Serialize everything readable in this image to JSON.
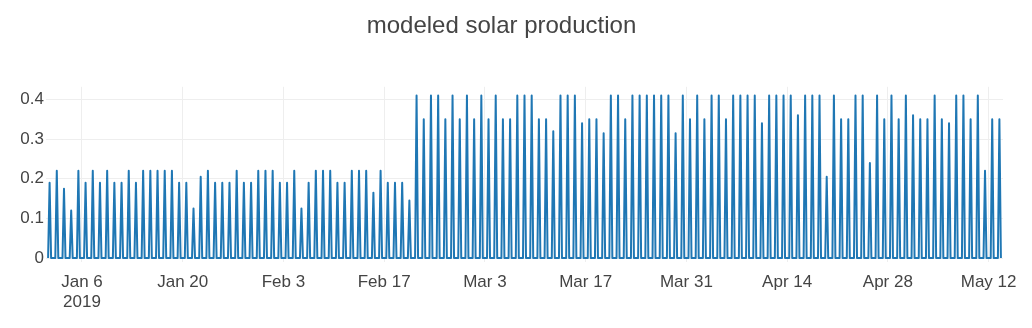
{
  "chart_data": {
    "type": "line",
    "title": "modeled solar production",
    "xlim": [
      "2019-01-01",
      "2019-05-14"
    ],
    "xticks": [
      {
        "value": "2019-01-06",
        "label": "Jan 6\n2019"
      },
      {
        "value": "2019-01-20",
        "label": "Jan 20"
      },
      {
        "value": "2019-02-03",
        "label": "Feb 3"
      },
      {
        "value": "2019-02-17",
        "label": "Feb 17"
      },
      {
        "value": "2019-03-03",
        "label": "Mar 3"
      },
      {
        "value": "2019-03-17",
        "label": "Mar 17"
      },
      {
        "value": "2019-03-31",
        "label": "Mar 31"
      },
      {
        "value": "2019-04-14",
        "label": "Apr 14"
      },
      {
        "value": "2019-04-28",
        "label": "Apr 28"
      },
      {
        "value": "2019-05-12",
        "label": "May 12"
      }
    ],
    "ylim": [
      -0.01,
      0.432
    ],
    "yticks": [
      0,
      0.1,
      0.2,
      0.3,
      0.4
    ],
    "grid": true,
    "legend": false,
    "marker": "none",
    "line_style": "solid",
    "series": [
      {
        "color": "#1f77b4",
        "x": [
          "2019-01-01T07:00",
          "2019-01-01T12:00",
          "2019-01-01T17:00",
          "2019-01-02T07:00",
          "2019-01-02T12:00",
          "2019-01-02T17:00",
          "2019-01-03T07:00",
          "2019-01-03T12:00",
          "2019-01-03T17:00",
          "2019-01-04T07:00",
          "2019-01-04T12:00",
          "2019-01-04T17:00",
          "2019-01-05T07:00",
          "2019-01-05T12:00",
          "2019-01-05T17:00",
          "2019-01-06T07:00",
          "2019-01-06T12:00",
          "2019-01-06T17:00",
          "2019-01-07T07:00",
          "2019-01-07T12:00",
          "2019-01-07T17:00",
          "2019-01-08T07:00",
          "2019-01-08T12:00",
          "2019-01-08T17:00",
          "2019-01-09T07:00",
          "2019-01-09T12:00",
          "2019-01-09T17:00",
          "2019-01-10T07:00",
          "2019-01-10T12:00",
          "2019-01-10T17:00",
          "2019-01-11T07:00",
          "2019-01-11T12:00",
          "2019-01-11T17:00",
          "2019-01-12T07:00",
          "2019-01-12T12:00",
          "2019-01-12T17:00",
          "2019-01-13T07:00",
          "2019-01-13T12:00",
          "2019-01-13T17:00",
          "2019-01-14T07:00",
          "2019-01-14T12:00",
          "2019-01-14T17:00",
          "2019-01-15T07:00",
          "2019-01-15T12:00",
          "2019-01-15T17:00",
          "2019-01-16T07:00",
          "2019-01-16T12:00",
          "2019-01-16T17:00",
          "2019-01-17T07:00",
          "2019-01-17T12:00",
          "2019-01-17T17:00",
          "2019-01-18T07:00",
          "2019-01-18T12:00",
          "2019-01-18T17:00",
          "2019-01-19T07:00",
          "2019-01-19T12:00",
          "2019-01-19T17:00",
          "2019-01-20T07:00",
          "2019-01-20T12:00",
          "2019-01-20T17:00",
          "2019-01-21T07:00",
          "2019-01-21T12:00",
          "2019-01-21T17:00",
          "2019-01-22T07:00",
          "2019-01-22T12:00",
          "2019-01-22T17:00",
          "2019-01-23T07:00",
          "2019-01-23T12:00",
          "2019-01-23T17:00",
          "2019-01-24T07:00",
          "2019-01-24T12:00",
          "2019-01-24T17:00",
          "2019-01-25T07:00",
          "2019-01-25T12:00",
          "2019-01-25T17:00",
          "2019-01-26T07:00",
          "2019-01-26T12:00",
          "2019-01-26T17:00",
          "2019-01-27T07:00",
          "2019-01-27T12:00",
          "2019-01-27T17:00",
          "2019-01-28T07:00",
          "2019-01-28T12:00",
          "2019-01-28T17:00",
          "2019-01-29T07:00",
          "2019-01-29T12:00",
          "2019-01-29T17:00",
          "2019-01-30T07:00",
          "2019-01-30T12:00",
          "2019-01-30T17:00",
          "2019-01-31T07:00",
          "2019-01-31T12:00",
          "2019-01-31T17:00",
          "2019-02-01T07:00",
          "2019-02-01T12:00",
          "2019-02-01T17:00",
          "2019-02-02T07:00",
          "2019-02-02T12:00",
          "2019-02-02T17:00",
          "2019-02-03T07:00",
          "2019-02-03T12:00",
          "2019-02-03T17:00",
          "2019-02-04T07:00",
          "2019-02-04T12:00",
          "2019-02-04T17:00",
          "2019-02-05T07:00",
          "2019-02-05T12:00",
          "2019-02-05T17:00",
          "2019-02-06T07:00",
          "2019-02-06T12:00",
          "2019-02-06T17:00",
          "2019-02-07T07:00",
          "2019-02-07T12:00",
          "2019-02-07T17:00",
          "2019-02-08T07:00",
          "2019-02-08T12:00",
          "2019-02-08T17:00",
          "2019-02-09T07:00",
          "2019-02-09T12:00",
          "2019-02-09T17:00",
          "2019-02-10T07:00",
          "2019-02-10T12:00",
          "2019-02-10T17:00",
          "2019-02-11T07:00",
          "2019-02-11T12:00",
          "2019-02-11T17:00",
          "2019-02-12T07:00",
          "2019-02-12T12:00",
          "2019-02-12T17:00",
          "2019-02-13T07:00",
          "2019-02-13T12:00",
          "2019-02-13T17:00",
          "2019-02-14T07:00",
          "2019-02-14T12:00",
          "2019-02-14T17:00",
          "2019-02-15T07:00",
          "2019-02-15T12:00",
          "2019-02-15T17:00",
          "2019-02-16T07:00",
          "2019-02-16T12:00",
          "2019-02-16T17:00",
          "2019-02-17T07:00",
          "2019-02-17T12:00",
          "2019-02-17T17:00",
          "2019-02-18T07:00",
          "2019-02-18T12:00",
          "2019-02-18T17:00",
          "2019-02-19T07:00",
          "2019-02-19T12:00",
          "2019-02-19T17:00",
          "2019-02-20T07:00",
          "2019-02-20T12:00",
          "2019-02-20T17:00",
          "2019-02-21T07:00",
          "2019-02-21T12:00",
          "2019-02-21T17:00",
          "2019-02-22T07:00",
          "2019-02-22T12:00",
          "2019-02-22T17:00",
          "2019-02-23T07:00",
          "2019-02-23T12:00",
          "2019-02-23T17:00",
          "2019-02-24T07:00",
          "2019-02-24T12:00",
          "2019-02-24T17:00",
          "2019-02-25T07:00",
          "2019-02-25T12:00",
          "2019-02-25T17:00",
          "2019-02-26T07:00",
          "2019-02-26T12:00",
          "2019-02-26T17:00",
          "2019-02-27T07:00",
          "2019-02-27T12:00",
          "2019-02-27T17:00",
          "2019-02-28T07:00",
          "2019-02-28T12:00",
          "2019-02-28T17:00",
          "2019-03-01T07:00",
          "2019-03-01T12:00",
          "2019-03-01T17:00",
          "2019-03-02T07:00",
          "2019-03-02T12:00",
          "2019-03-02T17:00",
          "2019-03-03T07:00",
          "2019-03-03T12:00",
          "2019-03-03T17:00",
          "2019-03-04T07:00",
          "2019-03-04T12:00",
          "2019-03-04T17:00",
          "2019-03-05T07:00",
          "2019-03-05T12:00",
          "2019-03-05T17:00",
          "2019-03-06T07:00",
          "2019-03-06T12:00",
          "2019-03-06T17:00",
          "2019-03-07T07:00",
          "2019-03-07T12:00",
          "2019-03-07T17:00",
          "2019-03-08T07:00",
          "2019-03-08T12:00",
          "2019-03-08T17:00",
          "2019-03-09T07:00",
          "2019-03-09T12:00",
          "2019-03-09T17:00",
          "2019-03-10T07:00",
          "2019-03-10T12:00",
          "2019-03-10T17:00",
          "2019-03-11T07:00",
          "2019-03-11T12:00",
          "2019-03-11T17:00",
          "2019-03-12T07:00",
          "2019-03-12T12:00",
          "2019-03-12T17:00",
          "2019-03-13T07:00",
          "2019-03-13T12:00",
          "2019-03-13T17:00",
          "2019-03-14T07:00",
          "2019-03-14T12:00",
          "2019-03-14T17:00",
          "2019-03-15T07:00",
          "2019-03-15T12:00",
          "2019-03-15T17:00",
          "2019-03-16T07:00",
          "2019-03-16T12:00",
          "2019-03-16T17:00",
          "2019-03-17T07:00",
          "2019-03-17T12:00",
          "2019-03-17T17:00",
          "2019-03-18T07:00",
          "2019-03-18T12:00",
          "2019-03-18T17:00",
          "2019-03-19T07:00",
          "2019-03-19T12:00",
          "2019-03-19T17:00",
          "2019-03-20T07:00",
          "2019-03-20T12:00",
          "2019-03-20T17:00",
          "2019-03-21T07:00",
          "2019-03-21T12:00",
          "2019-03-21T17:00",
          "2019-03-22T07:00",
          "2019-03-22T12:00",
          "2019-03-22T17:00",
          "2019-03-23T07:00",
          "2019-03-23T12:00",
          "2019-03-23T17:00",
          "2019-03-24T07:00",
          "2019-03-24T12:00",
          "2019-03-24T17:00",
          "2019-03-25T07:00",
          "2019-03-25T12:00",
          "2019-03-25T17:00",
          "2019-03-26T07:00",
          "2019-03-26T12:00",
          "2019-03-26T17:00",
          "2019-03-27T07:00",
          "2019-03-27T12:00",
          "2019-03-27T17:00",
          "2019-03-28T07:00",
          "2019-03-28T12:00",
          "2019-03-28T17:00",
          "2019-03-29T07:00",
          "2019-03-29T12:00",
          "2019-03-29T17:00",
          "2019-03-30T07:00",
          "2019-03-30T12:00",
          "2019-03-30T17:00",
          "2019-03-31T07:00",
          "2019-03-31T12:00",
          "2019-03-31T17:00",
          "2019-04-01T07:00",
          "2019-04-01T12:00",
          "2019-04-01T17:00",
          "2019-04-02T07:00",
          "2019-04-02T12:00",
          "2019-04-02T17:00",
          "2019-04-03T07:00",
          "2019-04-03T12:00",
          "2019-04-03T17:00",
          "2019-04-04T07:00",
          "2019-04-04T12:00",
          "2019-04-04T17:00",
          "2019-04-05T07:00",
          "2019-04-05T12:00",
          "2019-04-05T17:00",
          "2019-04-06T07:00",
          "2019-04-06T12:00",
          "2019-04-06T17:00",
          "2019-04-07T07:00",
          "2019-04-07T12:00",
          "2019-04-07T17:00",
          "2019-04-08T07:00",
          "2019-04-08T12:00",
          "2019-04-08T17:00",
          "2019-04-09T07:00",
          "2019-04-09T12:00",
          "2019-04-09T17:00",
          "2019-04-10T07:00",
          "2019-04-10T12:00",
          "2019-04-10T17:00",
          "2019-04-11T07:00",
          "2019-04-11T12:00",
          "2019-04-11T17:00",
          "2019-04-12T07:00",
          "2019-04-12T12:00",
          "2019-04-12T17:00",
          "2019-04-13T07:00",
          "2019-04-13T12:00",
          "2019-04-13T17:00",
          "2019-04-14T07:00",
          "2019-04-14T12:00",
          "2019-04-14T17:00",
          "2019-04-15T07:00",
          "2019-04-15T12:00",
          "2019-04-15T17:00",
          "2019-04-16T07:00",
          "2019-04-16T12:00",
          "2019-04-16T17:00",
          "2019-04-17T07:00",
          "2019-04-17T12:00",
          "2019-04-17T17:00",
          "2019-04-18T07:00",
          "2019-04-18T12:00",
          "2019-04-18T17:00",
          "2019-04-19T07:00",
          "2019-04-19T12:00",
          "2019-04-19T17:00",
          "2019-04-20T07:00",
          "2019-04-20T12:00",
          "2019-04-20T17:00",
          "2019-04-21T07:00",
          "2019-04-21T12:00",
          "2019-04-21T17:00",
          "2019-04-22T07:00",
          "2019-04-22T12:00",
          "2019-04-22T17:00",
          "2019-04-23T07:00",
          "2019-04-23T12:00",
          "2019-04-23T17:00",
          "2019-04-24T07:00",
          "2019-04-24T12:00",
          "2019-04-24T17:00",
          "2019-04-25T07:00",
          "2019-04-25T12:00",
          "2019-04-25T17:00",
          "2019-04-26T07:00",
          "2019-04-26T12:00",
          "2019-04-26T17:00",
          "2019-04-27T07:00",
          "2019-04-27T12:00",
          "2019-04-27T17:00",
          "2019-04-28T07:00",
          "2019-04-28T12:00",
          "2019-04-28T17:00",
          "2019-04-29T07:00",
          "2019-04-29T12:00",
          "2019-04-29T17:00",
          "2019-04-30T07:00",
          "2019-04-30T12:00",
          "2019-04-30T17:00",
          "2019-05-01T07:00",
          "2019-05-01T12:00",
          "2019-05-01T17:00",
          "2019-05-02T07:00",
          "2019-05-02T12:00",
          "2019-05-02T17:00",
          "2019-05-03T07:00",
          "2019-05-03T12:00",
          "2019-05-03T17:00",
          "2019-05-04T07:00",
          "2019-05-04T12:00",
          "2019-05-04T17:00",
          "2019-05-05T07:00",
          "2019-05-05T12:00",
          "2019-05-05T17:00",
          "2019-05-06T07:00",
          "2019-05-06T12:00",
          "2019-05-06T17:00",
          "2019-05-07T07:00",
          "2019-05-07T12:00",
          "2019-05-07T17:00",
          "2019-05-08T07:00",
          "2019-05-08T12:00",
          "2019-05-08T17:00",
          "2019-05-09T07:00",
          "2019-05-09T12:00",
          "2019-05-09T17:00",
          "2019-05-10T07:00",
          "2019-05-10T12:00",
          "2019-05-10T17:00",
          "2019-05-11T07:00",
          "2019-05-11T12:00",
          "2019-05-11T17:00",
          "2019-05-12T07:00",
          "2019-05-12T12:00",
          "2019-05-12T17:00",
          "2019-05-13T07:00",
          "2019-05-13T12:00",
          "2019-05-13T17:00"
        ],
        "values": [
          0,
          0.19,
          0,
          0,
          0.22,
          0,
          0,
          0.175,
          0,
          0,
          0.12,
          0,
          0,
          0.22,
          0,
          0,
          0.19,
          0,
          0,
          0.22,
          0,
          0,
          0.19,
          0,
          0,
          0.22,
          0,
          0,
          0.19,
          0,
          0,
          0.19,
          0,
          0,
          0.22,
          0,
          0,
          0.19,
          0,
          0,
          0.22,
          0,
          0,
          0.22,
          0,
          0,
          0.22,
          0,
          0,
          0.22,
          0,
          0,
          0.22,
          0,
          0,
          0.19,
          0,
          0,
          0.19,
          0,
          0,
          0.125,
          0,
          0,
          0.205,
          0,
          0,
          0.22,
          0,
          0,
          0.19,
          0,
          0,
          0.19,
          0,
          0,
          0.19,
          0,
          0,
          0.22,
          0,
          0,
          0.19,
          0,
          0,
          0.19,
          0,
          0,
          0.22,
          0,
          0,
          0.22,
          0,
          0,
          0.22,
          0,
          0,
          0.19,
          0,
          0,
          0.19,
          0,
          0,
          0.22,
          0,
          0,
          0.125,
          0,
          0,
          0.19,
          0,
          0,
          0.22,
          0,
          0,
          0.22,
          0,
          0,
          0.22,
          0,
          0,
          0.19,
          0,
          0,
          0.19,
          0,
          0,
          0.22,
          0,
          0,
          0.22,
          0,
          0,
          0.22,
          0,
          0,
          0.165,
          0,
          0,
          0.22,
          0,
          0,
          0.19,
          0,
          0,
          0.19,
          0,
          0,
          0.19,
          0,
          0,
          0.145,
          0,
          0,
          0.41,
          0,
          0,
          0.35,
          0,
          0,
          0.41,
          0,
          0,
          0.41,
          0,
          0,
          0.35,
          0,
          0,
          0.41,
          0,
          0,
          0.35,
          0,
          0,
          0.41,
          0,
          0,
          0.35,
          0,
          0,
          0.41,
          0,
          0,
          0.35,
          0,
          0,
          0.41,
          0,
          0,
          0.35,
          0,
          0,
          0.35,
          0,
          0,
          0.41,
          0,
          0,
          0.41,
          0,
          0,
          0.41,
          0,
          0,
          0.35,
          0,
          0,
          0.35,
          0,
          0,
          0.32,
          0,
          0,
          0.41,
          0,
          0,
          0.41,
          0,
          0,
          0.41,
          0,
          0,
          0.34,
          0,
          0,
          0.35,
          0,
          0,
          0.35,
          0,
          0,
          0.315,
          0,
          0,
          0.41,
          0,
          0,
          0.41,
          0,
          0,
          0.35,
          0,
          0,
          0.41,
          0,
          0,
          0.41,
          0,
          0,
          0.41,
          0,
          0,
          0.41,
          0,
          0,
          0.41,
          0,
          0,
          0.41,
          0,
          0,
          0.315,
          0,
          0,
          0.41,
          0,
          0,
          0.35,
          0,
          0,
          0.41,
          0,
          0,
          0.35,
          0,
          0,
          0.41,
          0,
          0,
          0.41,
          0,
          0,
          0.35,
          0,
          0,
          0.41,
          0,
          0,
          0.41,
          0,
          0,
          0.41,
          0,
          0,
          0.41,
          0,
          0,
          0.34,
          0,
          0,
          0.41,
          0,
          0,
          0.41,
          0,
          0,
          0.41,
          0,
          0,
          0.41,
          0,
          0,
          0.36,
          0,
          0,
          0.41,
          0,
          0,
          0.41,
          0,
          0,
          0.41,
          0,
          0,
          0.205,
          0,
          0,
          0.41,
          0,
          0,
          0.35,
          0,
          0,
          0.35,
          0,
          0,
          0.41,
          0,
          0,
          0.41,
          0,
          0,
          0.24,
          0,
          0,
          0.41,
          0,
          0,
          0.35,
          0,
          0,
          0.41,
          0,
          0,
          0.35,
          0,
          0,
          0.41,
          0,
          0,
          0.36,
          0,
          0,
          0.35,
          0,
          0,
          0.35,
          0,
          0,
          0.41,
          0,
          0,
          0.35,
          0,
          0,
          0.34,
          0,
          0,
          0.41,
          0,
          0,
          0.41,
          0,
          0,
          0.35,
          0,
          0,
          0.41,
          0,
          0,
          0.22,
          0,
          0,
          0.35,
          0,
          0,
          0.35,
          0
        ]
      }
    ]
  }
}
